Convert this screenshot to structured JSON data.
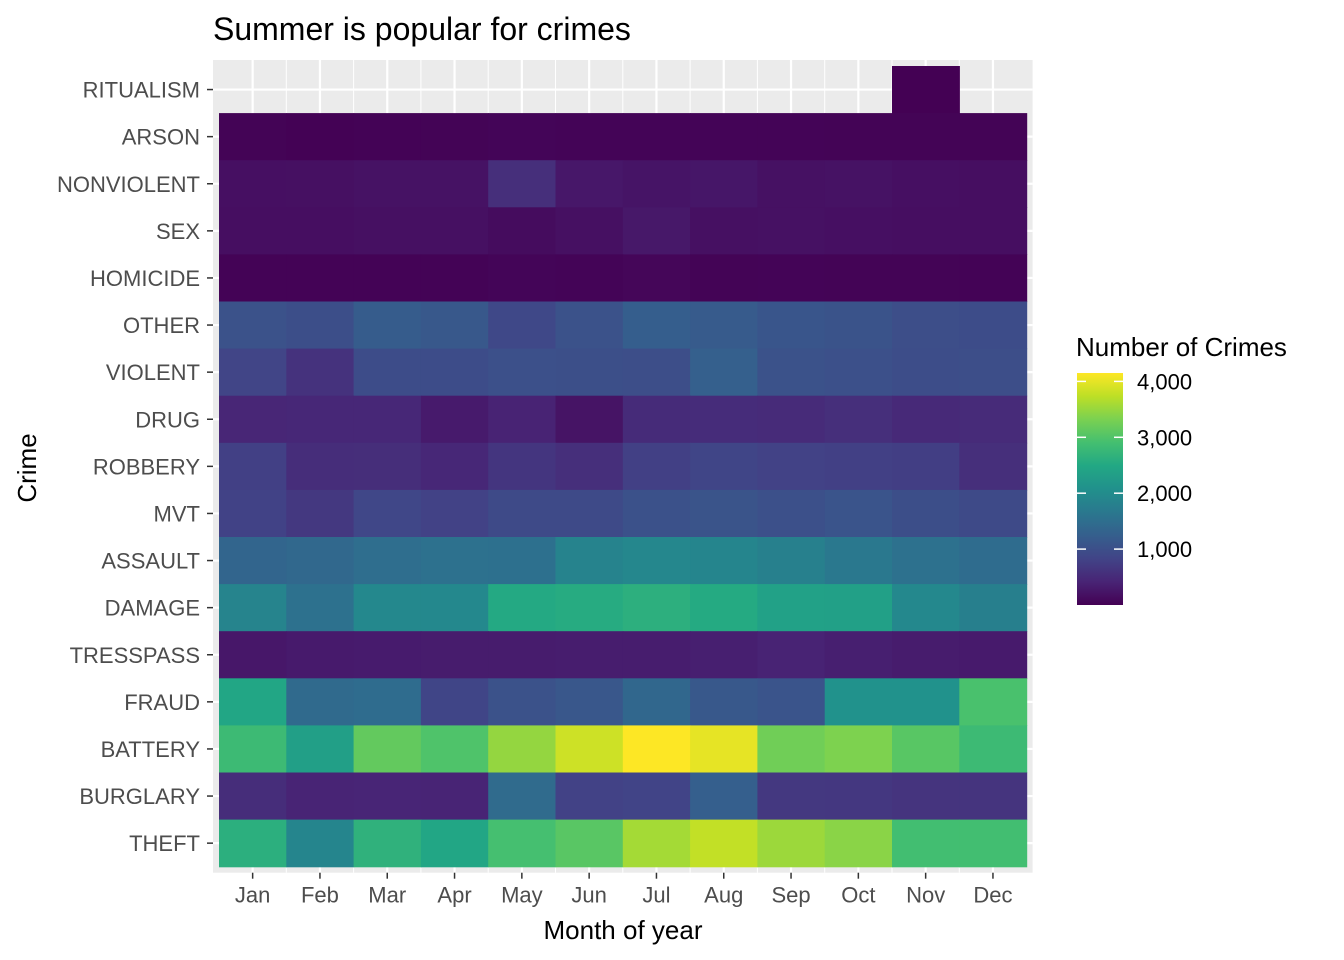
{
  "chart_data": {
    "type": "heatmap",
    "title": "Summer is popular for crimes",
    "xlabel": "Month of year",
    "ylabel": "Crime",
    "x": [
      "Jan",
      "Feb",
      "Mar",
      "Apr",
      "May",
      "Jun",
      "Jul",
      "Aug",
      "Sep",
      "Oct",
      "Nov",
      "Dec"
    ],
    "y": [
      "RITUALISM",
      "ARSON",
      "NONVIOLENT",
      "SEX",
      "HOMICIDE",
      "OTHER",
      "VIOLENT",
      "DRUG",
      "ROBBERY",
      "MVT",
      "ASSAULT",
      "DAMAGE",
      "TRESSPASS",
      "FRAUD",
      "BATTERY",
      "BURGLARY",
      "THEFT"
    ],
    "values": [
      [
        null,
        null,
        null,
        null,
        null,
        null,
        null,
        null,
        null,
        null,
        3,
        null
      ],
      [
        30,
        10,
        25,
        30,
        45,
        40,
        40,
        35,
        35,
        30,
        30,
        30
      ],
      [
        170,
        180,
        200,
        200,
        560,
        260,
        230,
        250,
        190,
        200,
        170,
        160
      ],
      [
        160,
        160,
        180,
        180,
        130,
        180,
        270,
        180,
        190,
        170,
        160,
        160
      ],
      [
        25,
        20,
        20,
        25,
        50,
        40,
        60,
        30,
        40,
        30,
        30,
        20
      ],
      [
        1040,
        990,
        1200,
        1140,
        890,
        1050,
        1230,
        1180,
        1090,
        1060,
        980,
        960
      ],
      [
        840,
        600,
        960,
        960,
        1020,
        1000,
        980,
        1260,
        1050,
        1020,
        970,
        980
      ],
      [
        440,
        460,
        460,
        300,
        400,
        220,
        510,
        520,
        500,
        560,
        480,
        500
      ],
      [
        780,
        530,
        540,
        460,
        640,
        560,
        780,
        850,
        800,
        780,
        750,
        560
      ],
      [
        810,
        680,
        880,
        800,
        920,
        920,
        1030,
        1070,
        1010,
        1080,
        990,
        920
      ],
      [
        1350,
        1400,
        1490,
        1550,
        1530,
        1840,
        1910,
        1880,
        1800,
        1660,
        1550,
        1460
      ],
      [
        1860,
        1550,
        1930,
        1930,
        2510,
        2550,
        2620,
        2530,
        2360,
        2340,
        1920,
        1780
      ],
      [
        260,
        300,
        310,
        320,
        320,
        330,
        330,
        350,
        400,
        350,
        320,
        300
      ],
      [
        2460,
        1420,
        1460,
        850,
        1040,
        1120,
        1380,
        1140,
        1080,
        2100,
        2100,
        2940
      ],
      [
        2820,
        2330,
        3140,
        2990,
        3480,
        3840,
        4150,
        4000,
        3240,
        3340,
        3060,
        2820
      ],
      [
        530,
        410,
        430,
        410,
        1450,
        800,
        830,
        1250,
        670,
        660,
        620,
        620
      ],
      [
        2610,
        1880,
        2660,
        2450,
        2910,
        3070,
        3580,
        3770,
        3530,
        3420,
        2880,
        2880
      ]
    ],
    "legend": {
      "title": "Number of Crimes",
      "placement": "right",
      "ticks": [
        1000,
        2000,
        3000,
        4000
      ],
      "tick_labels": [
        "1,000",
        "2,000",
        "3,000",
        "4,000"
      ],
      "range": [
        0,
        4150
      ]
    },
    "colorscale": "viridis",
    "panel_background": "#ebebeb",
    "grid": true,
    "grid_color": "#ffffff"
  }
}
